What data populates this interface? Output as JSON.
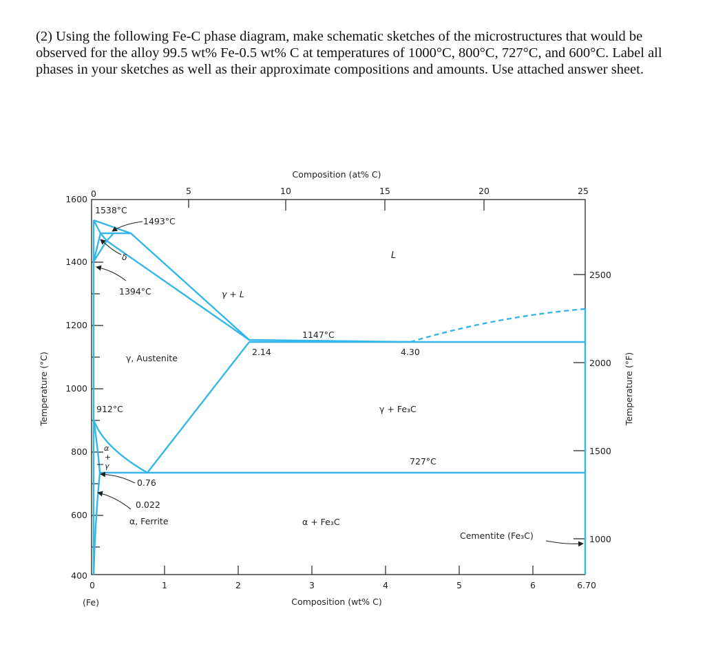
{
  "question": "(2) Using the following Fe-C phase diagram, make schematic sketches of the microstructures that would be observed for the alloy 99.5 wt% Fe-0.5 wt% C at temperatures of 1000°C, 800°C, 727°C, and 600°C. Label all phases in your sketches as well as their approximate compositions and amounts. Use attached answer sheet.",
  "axes": {
    "top_title": "Composition (at% C)",
    "top_ticks": [
      "0",
      "5",
      "10",
      "15",
      "20",
      "25"
    ],
    "bottom_title": "Composition (wt% C)",
    "bottom_ticks": [
      "0",
      "1",
      "2",
      "3",
      "4",
      "5",
      "6",
      "6.70"
    ],
    "bottom_sublabel": "(Fe)",
    "left_title": "Temperature (°C)",
    "left_ticks": [
      "1600",
      "1400",
      "1200",
      "1000",
      "800",
      "600",
      "400"
    ],
    "right_title": "Temperature (°F)",
    "right_ticks": [
      "2500",
      "2000",
      "1500",
      "1000"
    ]
  },
  "labels": {
    "t1538": "1538°C",
    "t1493": "1493°C",
    "delta": "δ",
    "t1394": "1394°C",
    "gamma_l": "γ + L",
    "liquid": "L",
    "t1147": "1147°C",
    "c214": "2.14",
    "c430": "4.30",
    "austenite": "γ, Austenite",
    "t912": "912°C",
    "gamma_fe3c": "γ + Fe₃C",
    "alpha_top": "α",
    "alpha_plus": "+",
    "alpha_gamma": "γ",
    "t727": "727°C",
    "c076": "0.76",
    "c0022": "0.022",
    "ferrite": "α, Ferrite",
    "alpha_fe3c": "α + Fe₃C",
    "cementite": "Cementite (Fe₃C)"
  },
  "line_color": "#33b6e8"
}
